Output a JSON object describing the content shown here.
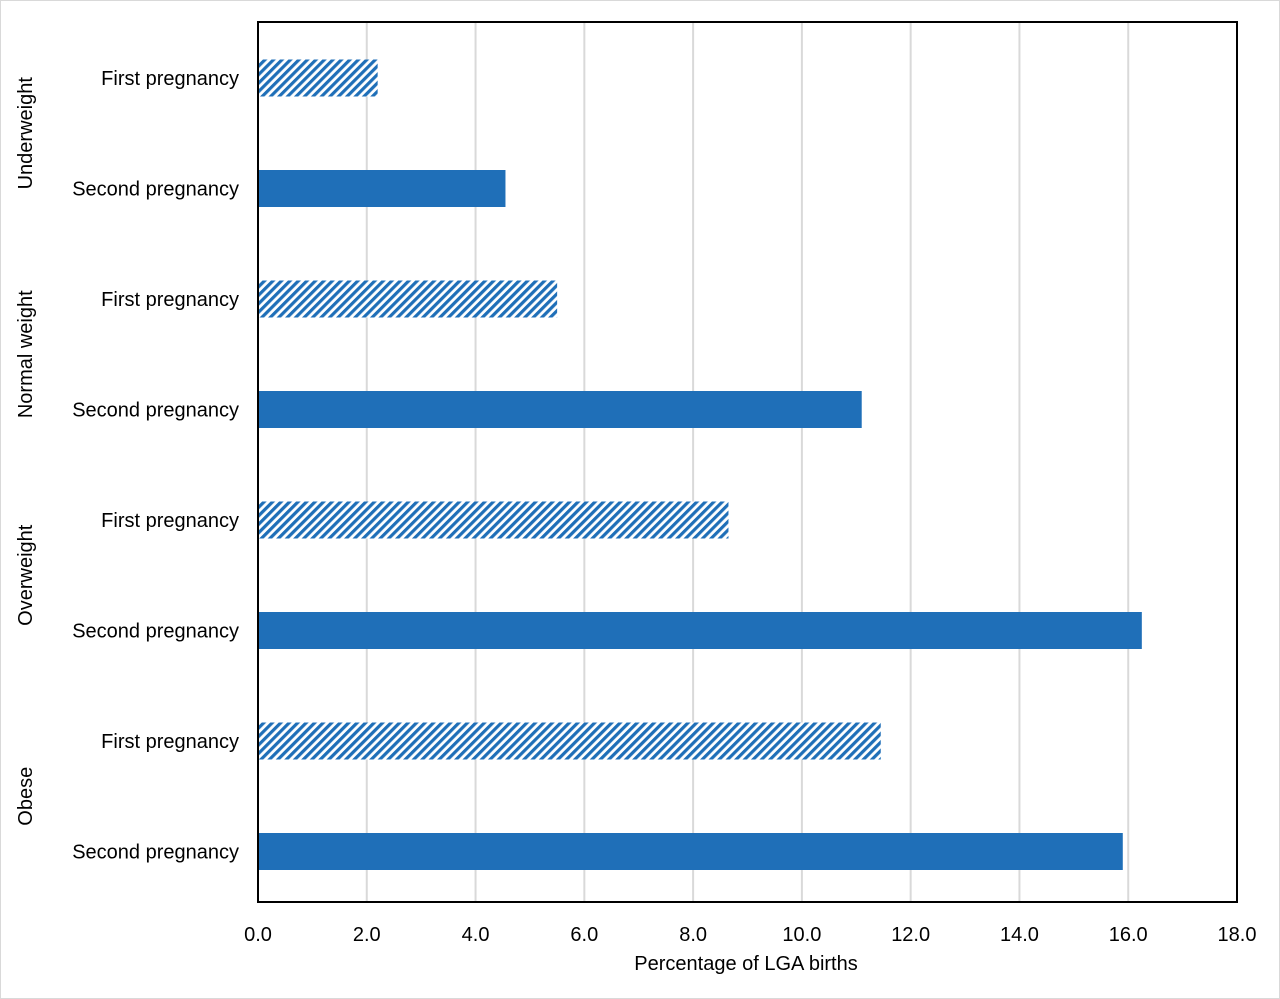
{
  "chart_data": {
    "type": "bar",
    "orientation": "horizontal",
    "title": "",
    "xlabel": "Percentage of LGA births",
    "ylabel": "",
    "xlim": [
      0,
      18
    ],
    "x_ticks": [
      "0.0",
      "2.0",
      "4.0",
      "6.0",
      "8.0",
      "10.0",
      "12.0",
      "14.0",
      "16.0",
      "18.0"
    ],
    "grid": "vertical",
    "legend": "none",
    "groups": [
      {
        "name": "Underweight",
        "bars": [
          {
            "label": "First pregnancy",
            "value": 2.2,
            "style": "hatched"
          },
          {
            "label": "Second pregnancy",
            "value": 4.55,
            "style": "solid"
          }
        ]
      },
      {
        "name": "Normal weight",
        "bars": [
          {
            "label": "First pregnancy",
            "value": 5.5,
            "style": "hatched"
          },
          {
            "label": "Second pregnancy",
            "value": 11.1,
            "style": "solid"
          }
        ]
      },
      {
        "name": "Overweight",
        "bars": [
          {
            "label": "First pregnancy",
            "value": 8.65,
            "style": "hatched"
          },
          {
            "label": "Second pregnancy",
            "value": 16.25,
            "style": "solid"
          }
        ]
      },
      {
        "name": "Obese",
        "bars": [
          {
            "label": "First pregnancy",
            "value": 11.45,
            "style": "hatched"
          },
          {
            "label": "Second pregnancy",
            "value": 15.9,
            "style": "solid"
          }
        ]
      }
    ],
    "colors": {
      "bar": "#1f6fb8",
      "hatch_background": "#ffffff",
      "grid": "#d9d9d9",
      "axis": "#000000"
    }
  }
}
